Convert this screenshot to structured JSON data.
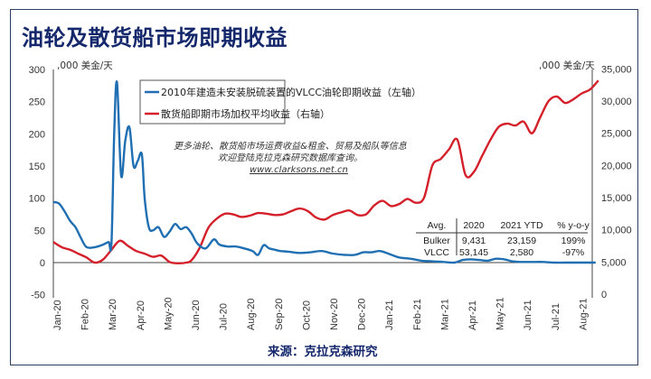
{
  "title": "油轮及散货船市场即期收益",
  "source": "来源：克拉克森研究",
  "note": {
    "line1": "更多油轮、散货船市场运费收益&租金、贸易及船队等信息",
    "line2": "欢迎登陆克拉克森研究数据库查询。",
    "link": "www.clarksons.net.cn"
  },
  "summary_table": {
    "headers": [
      "Avg.",
      "2020",
      "2021 YTD",
      "% y-o-y"
    ],
    "rows": [
      [
        "Bulker",
        "9,431",
        "23,159",
        "199%"
      ],
      [
        "VLCC",
        "53,145",
        "2,580",
        "-97%"
      ]
    ]
  },
  "colors": {
    "vlcc": "#1f6fb2",
    "bulker": "#d4202a",
    "title": "#14286b",
    "frame": "#2b3f63"
  },
  "chart_data": {
    "type": "line",
    "title": "油轮及散货船市场即期收益",
    "xlabel": "",
    "left_axis": {
      "label": ",000 美金/天",
      "ylim": [
        -50,
        300
      ],
      "ticks": [
        "300",
        "250",
        "200",
        "150",
        "100",
        "50",
        "0",
        "-50"
      ]
    },
    "right_axis": {
      "label": ",000 美金/天",
      "ylim": [
        0,
        35000
      ],
      "ticks": [
        "35,000",
        "30,000",
        "25,000",
        "20,000",
        "15,000",
        "10,000",
        "5,000",
        "0"
      ]
    },
    "categories": [
      "Jan-20",
      "Feb-20",
      "Mar-20",
      "Apr-20",
      "May-20",
      "Jun-20",
      "Jul-20",
      "Aug-20",
      "Sep-20",
      "Oct-20",
      "Nov-20",
      "Dec-20",
      "Jan-21",
      "Feb-21",
      "Mar-21",
      "Apr-21",
      "May-21",
      "Jun-21",
      "Jul-21",
      "Aug-21"
    ],
    "legend": {
      "position": "top-center",
      "entries": [
        "2010年建造未安装脱硫装置的VLCC油轮即期收益（左轴）",
        "散货船即期市场加权平均收益（右轴）"
      ]
    },
    "grid": false,
    "series": [
      {
        "name": "2010年建造未安装脱硫装置的VLCC油轮即期收益（左轴）",
        "axis": "left",
        "color": "#1f6fb2",
        "x": [
          0,
          0.2,
          0.4,
          0.6,
          0.8,
          1.0,
          1.2,
          1.5,
          1.8,
          2.0,
          2.1,
          2.2,
          2.3,
          2.45,
          2.6,
          2.75,
          2.9,
          3.05,
          3.2,
          3.3,
          3.45,
          3.6,
          3.8,
          4.0,
          4.2,
          4.4,
          4.6,
          4.8,
          5.0,
          5.2,
          5.5,
          5.8,
          6.0,
          6.3,
          6.6,
          6.9,
          7.2,
          7.4,
          7.6,
          7.8,
          8.0,
          8.2,
          8.5,
          8.9,
          9.3,
          9.7,
          10.1,
          10.5,
          10.9,
          11.2,
          11.5,
          11.8,
          12.1,
          12.5,
          12.9,
          13.3,
          13.7,
          14.1,
          14.5,
          14.8,
          15.1,
          15.4,
          15.7,
          16.0,
          16.3,
          16.6,
          16.9,
          17.3,
          17.7,
          18.1,
          18.5,
          18.9,
          19.3,
          19.6
        ],
        "values": [
          94,
          92,
          80,
          65,
          55,
          38,
          24,
          24,
          28,
          32,
          30,
          200,
          280,
          135,
          190,
          210,
          150,
          158,
          168,
          100,
          55,
          50,
          55,
          40,
          48,
          60,
          52,
          55,
          45,
          30,
          22,
          36,
          28,
          25,
          25,
          22,
          18,
          12,
          27,
          22,
          20,
          18,
          17,
          15,
          16,
          18,
          14,
          12,
          12,
          16,
          16,
          18,
          14,
          8,
          6,
          3,
          2,
          1,
          0,
          4,
          5,
          4,
          3,
          6,
          5,
          2,
          1,
          1,
          1,
          0,
          0,
          0,
          0,
          0
        ]
      },
      {
        "name": "散货船即期市场加权平均收益（右轴）",
        "axis": "right",
        "color": "#d4202a",
        "x": [
          0,
          0.3,
          0.6,
          0.9,
          1.2,
          1.5,
          1.8,
          2.1,
          2.4,
          2.7,
          3.0,
          3.3,
          3.6,
          3.9,
          4.2,
          4.5,
          4.8,
          5.0,
          5.3,
          5.6,
          5.9,
          6.2,
          6.5,
          6.8,
          7.1,
          7.4,
          7.7,
          8.0,
          8.3,
          8.6,
          8.9,
          9.2,
          9.5,
          9.8,
          10.1,
          10.4,
          10.7,
          11.0,
          11.3,
          11.6,
          11.9,
          12.2,
          12.5,
          12.8,
          13.1,
          13.4,
          13.7,
          14.0,
          14.3,
          14.6,
          14.9,
          15.2,
          15.5,
          15.8,
          16.1,
          16.4,
          16.7,
          17.0,
          17.3,
          17.6,
          17.9,
          18.2,
          18.5,
          18.8,
          19.1,
          19.4,
          19.7
        ],
        "values": [
          8100,
          7300,
          6900,
          6300,
          5700,
          4900,
          5400,
          6900,
          8300,
          7500,
          6700,
          6300,
          5800,
          6000,
          5000,
          4800,
          4900,
          5300,
          7300,
          10300,
          11700,
          12500,
          12400,
          12000,
          12200,
          12600,
          12500,
          12300,
          12400,
          12900,
          13300,
          12900,
          11900,
          11600,
          12300,
          12700,
          13000,
          12300,
          12400,
          13800,
          14500,
          13700,
          14000,
          14800,
          14200,
          15000,
          20000,
          21000,
          22500,
          24000,
          18500,
          19000,
          21500,
          24000,
          26000,
          26500,
          26200,
          26800,
          25000,
          27500,
          30000,
          30700,
          29700,
          30300,
          31200,
          31800,
          33200
        ]
      }
    ]
  }
}
